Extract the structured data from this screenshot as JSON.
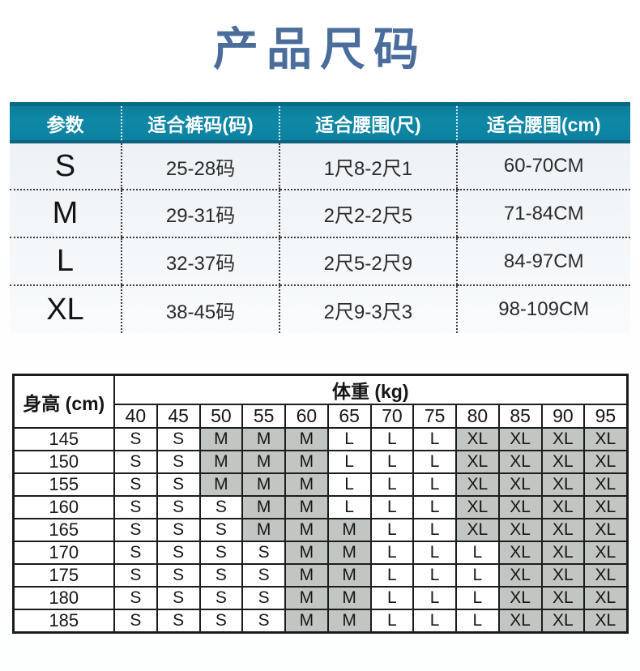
{
  "page": {
    "title": "产品尺码"
  },
  "colors": {
    "title_blue": "#4a6d9b",
    "header_teal": "#0d83a0",
    "highlight_gray": "#c1c6c2"
  },
  "size_table": {
    "headers": [
      "参数",
      "适合裤码(码)",
      "适合腰围(尺)",
      "适合腰围(cm)"
    ],
    "rows": [
      {
        "size": "S",
        "pants": "25-28码",
        "waist_chi": "1尺8-2尺1",
        "waist_cm": "60-70CM"
      },
      {
        "size": "M",
        "pants": "29-31码",
        "waist_chi": "2尺2-2尺5",
        "waist_cm": "71-84CM"
      },
      {
        "size": "L",
        "pants": "32-37码",
        "waist_chi": "2尺5-2尺9",
        "waist_cm": "84-97CM"
      },
      {
        "size": "XL",
        "pants": "38-45码",
        "waist_chi": "2尺9-3尺3",
        "waist_cm": "98-109CM"
      }
    ]
  },
  "height_weight_table": {
    "height_label": "身高 (cm)",
    "weight_label": "体重 (kg)",
    "weights": [
      "40",
      "45",
      "50",
      "55",
      "60",
      "65",
      "70",
      "75",
      "80",
      "85",
      "90",
      "95"
    ],
    "highlighted_sizes": [
      "M",
      "XL"
    ],
    "rows": [
      {
        "height": "145",
        "cells": [
          "S",
          "S",
          "M",
          "M",
          "M",
          "L",
          "L",
          "L",
          "XL",
          "XL",
          "XL",
          "XL"
        ]
      },
      {
        "height": "150",
        "cells": [
          "S",
          "S",
          "M",
          "M",
          "M",
          "L",
          "L",
          "L",
          "XL",
          "XL",
          "XL",
          "XL"
        ]
      },
      {
        "height": "155",
        "cells": [
          "S",
          "S",
          "M",
          "M",
          "M",
          "L",
          "L",
          "L",
          "XL",
          "XL",
          "XL",
          "XL"
        ]
      },
      {
        "height": "160",
        "cells": [
          "S",
          "S",
          "S",
          "M",
          "M",
          "L",
          "L",
          "L",
          "XL",
          "XL",
          "XL",
          "XL"
        ]
      },
      {
        "height": "165",
        "cells": [
          "S",
          "S",
          "S",
          "M",
          "M",
          "M",
          "L",
          "L",
          "XL",
          "XL",
          "XL",
          "XL"
        ]
      },
      {
        "height": "170",
        "cells": [
          "S",
          "S",
          "S",
          "S",
          "M",
          "M",
          "L",
          "L",
          "L",
          "XL",
          "XL",
          "XL"
        ]
      },
      {
        "height": "175",
        "cells": [
          "S",
          "S",
          "S",
          "S",
          "M",
          "M",
          "L",
          "L",
          "L",
          "XL",
          "XL",
          "XL"
        ]
      },
      {
        "height": "180",
        "cells": [
          "S",
          "S",
          "S",
          "S",
          "M",
          "M",
          "L",
          "L",
          "L",
          "XL",
          "XL",
          "XL"
        ]
      },
      {
        "height": "185",
        "cells": [
          "S",
          "S",
          "S",
          "S",
          "M",
          "M",
          "L",
          "L",
          "L",
          "XL",
          "XL",
          "XL"
        ]
      }
    ]
  }
}
